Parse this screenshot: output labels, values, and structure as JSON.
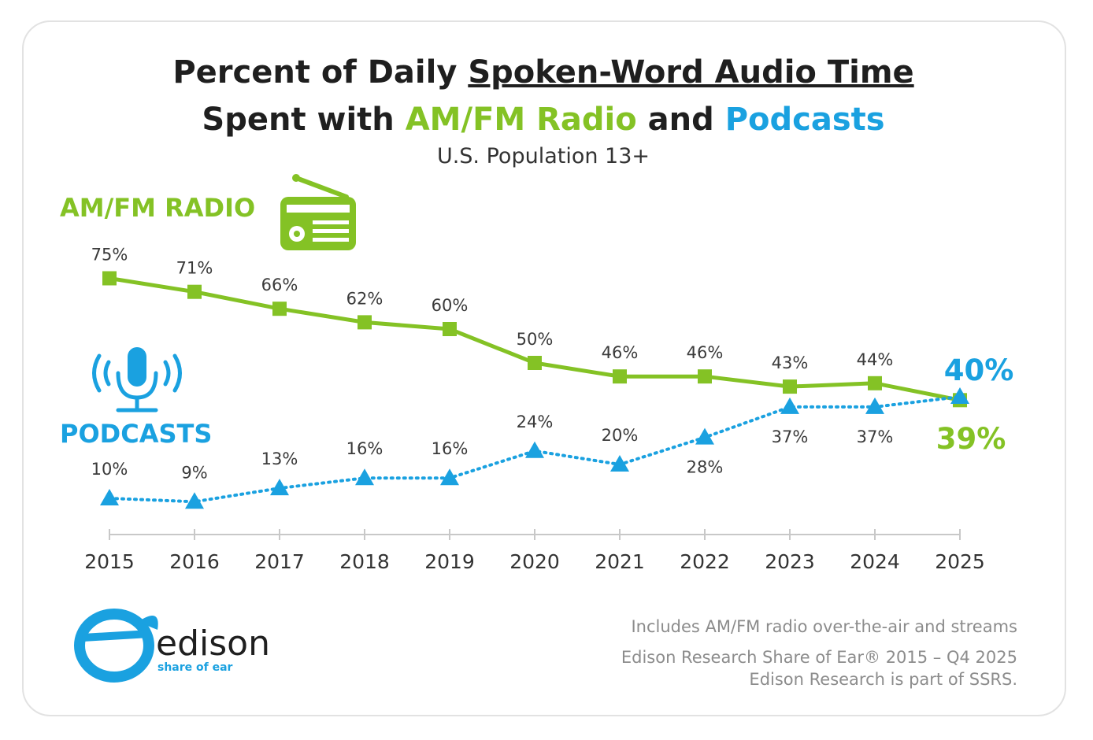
{
  "title": {
    "line1_part1": "Percent of Daily ",
    "line1_part2": "Spoken-Word Audio Time",
    "line2_part1": "Spent with ",
    "line2_part2": "AM/FM Radio",
    "line2_part3": " and ",
    "line2_part4": "Podcasts"
  },
  "subtitle": "U.S. Population 13+",
  "series_labels": {
    "radio": "AM/FM RADIO",
    "podcasts": "PODCASTS"
  },
  "icons": {
    "radio": "radio-icon",
    "podcasts": "microphone-icon"
  },
  "colors": {
    "radio": "#84c225",
    "podcasts": "#1aa1e0",
    "title": "#1f1f1f"
  },
  "chart_data": {
    "type": "line",
    "x": [
      "2015",
      "2016",
      "2017",
      "2018",
      "2019",
      "2020",
      "2021",
      "2022",
      "2023",
      "2024",
      "2025"
    ],
    "series": [
      {
        "name": "AM/FM RADIO",
        "values": [
          75,
          71,
          66,
          62,
          60,
          50,
          46,
          46,
          43,
          44,
          39
        ],
        "labels": [
          "75%",
          "71%",
          "66%",
          "62%",
          "60%",
          "50%",
          "46%",
          "46%",
          "43%",
          "44%",
          "39%"
        ],
        "marker": "square",
        "line": "solid"
      },
      {
        "name": "PODCASTS",
        "values": [
          10,
          9,
          13,
          16,
          16,
          24,
          20,
          28,
          37,
          37,
          40
        ],
        "labels": [
          "10%",
          "9%",
          "13%",
          "16%",
          "16%",
          "24%",
          "20%",
          "28%",
          "37%",
          "37%",
          "40%"
        ],
        "marker": "triangle",
        "line": "dotted"
      }
    ],
    "grid": false,
    "legend": "inline-left"
  },
  "notes": [
    "Includes AM/FM radio over-the-air and streams",
    "Edison Research Share of Ear® 2015 – Q4 2025",
    "Edison Research is part of SSRS."
  ],
  "logo": {
    "word": "edison",
    "sub": "share of ear"
  }
}
